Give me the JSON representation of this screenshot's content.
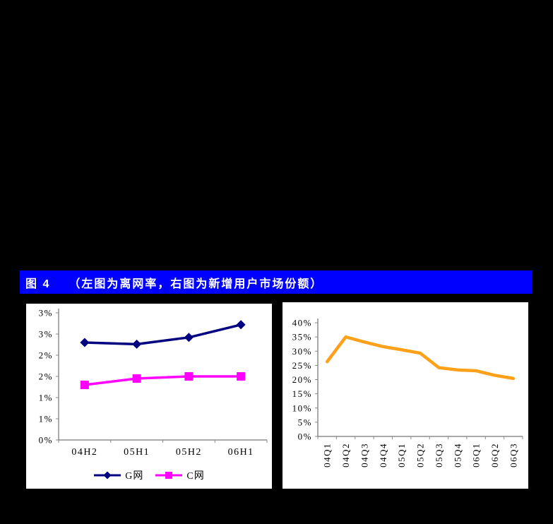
{
  "header": {
    "label": "图 4",
    "title": "（左图为离网率，右图为新增用户市场份额）"
  },
  "colors": {
    "page_bg": "#000000",
    "header_bg": "#0000FE",
    "header_fg": "#FFFFFF",
    "panel_bg": "#FFFFFF",
    "axis": "#555555",
    "tick": "#888888"
  },
  "chart_data": [
    {
      "type": "line",
      "position": "left",
      "description_from_caption": "离网率",
      "categories": [
        "04H2",
        "05H1",
        "05H2",
        "06H1"
      ],
      "series": [
        {
          "name": "G网",
          "color": "#000080",
          "marker": "diamond",
          "values": [
            2.3,
            2.26,
            2.42,
            2.72
          ]
        },
        {
          "name": "C网",
          "color": "#FF00FF",
          "marker": "square",
          "values": [
            1.3,
            1.45,
            1.5,
            1.5
          ]
        }
      ],
      "y_axis": {
        "min": 0,
        "max": 3,
        "step": 0.5,
        "tick_labels": [
          "0%",
          "1%",
          "1%",
          "2%",
          "2%",
          "3%",
          "3%"
        ]
      },
      "x_axis": {
        "rotate_labels": false
      },
      "legend": "bottom",
      "grid": false
    },
    {
      "type": "line",
      "position": "right",
      "description_from_caption": "新增用户市场份额",
      "categories": [
        "04Q1",
        "04Q2",
        "04Q3",
        "04Q4",
        "05Q1",
        "05Q2",
        "05Q3",
        "05Q4",
        "06Q1",
        "06Q2",
        "06Q3"
      ],
      "series": [
        {
          "name": "",
          "color": "#FFA019",
          "marker": "none",
          "values": [
            26.3,
            35.0,
            33.2,
            31.6,
            30.5,
            29.3,
            24.2,
            23.4,
            23.1,
            21.5,
            20.4
          ]
        }
      ],
      "y_axis": {
        "min": 0,
        "max": 40,
        "step": 5,
        "tick_labels": [
          "0%",
          "5%",
          "10%",
          "15%",
          "20%",
          "25%",
          "30%",
          "35%",
          "40%"
        ]
      },
      "x_axis": {
        "rotate_labels": true
      },
      "legend": "none",
      "grid": false
    }
  ]
}
